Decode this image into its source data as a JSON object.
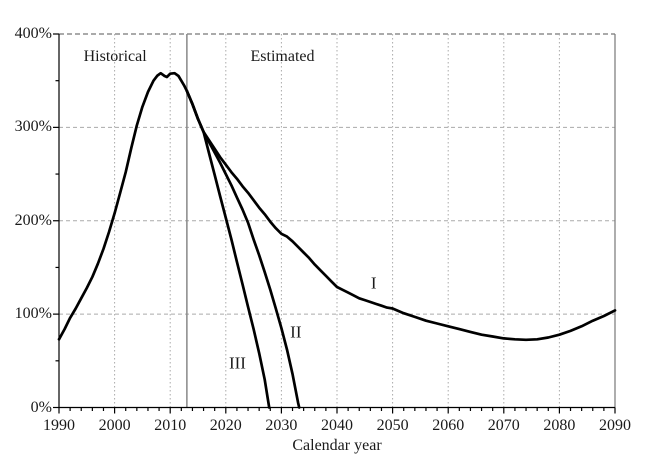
{
  "chart_data": {
    "type": "line",
    "title": "",
    "xlabel": "Calendar year",
    "ylabel": "",
    "xlim": [
      1990,
      2090
    ],
    "ylim": [
      0,
      400
    ],
    "x_tick_step": 10,
    "x_minor_step": 2,
    "y_tick_step": 100,
    "y_minor_step": 50,
    "grid": true,
    "legend_position": "none",
    "x_ticks": [
      "1990",
      "2000",
      "2010",
      "2020",
      "2030",
      "2040",
      "2050",
      "2060",
      "2070",
      "2080",
      "2090"
    ],
    "y_ticks": [
      "0%",
      "100%",
      "200%",
      "300%",
      "400%"
    ],
    "divider_year": 2013,
    "annotations": {
      "historical": {
        "text": "Historical",
        "x": 2000.1,
        "y": 375
      },
      "estimated": {
        "text": "Estimated",
        "x": 2030.2,
        "y": 375
      }
    },
    "series": [
      {
        "name": "historical",
        "label": "",
        "points": [
          [
            1990,
            73
          ],
          [
            1991,
            84
          ],
          [
            1992,
            96
          ],
          [
            1993,
            106
          ],
          [
            1994,
            117
          ],
          [
            1995,
            128
          ],
          [
            1996,
            140
          ],
          [
            1997,
            154
          ],
          [
            1998,
            170
          ],
          [
            1999,
            188
          ],
          [
            2000,
            208
          ],
          [
            2001,
            230
          ],
          [
            2002,
            252
          ],
          [
            2003,
            278
          ],
          [
            2004,
            302
          ],
          [
            2005,
            322
          ],
          [
            2006,
            338
          ],
          [
            2007,
            350
          ],
          [
            2007.7,
            355.5
          ],
          [
            2008.3,
            358
          ],
          [
            2009,
            355
          ],
          [
            2009.4,
            354
          ],
          [
            2010,
            357.5
          ],
          [
            2010.8,
            358
          ],
          [
            2011.5,
            355
          ],
          [
            2012,
            350
          ],
          [
            2012.5,
            345
          ],
          [
            2013,
            339
          ]
        ]
      },
      {
        "name": "alternative-I",
        "label": "I",
        "label_x": 2046.6,
        "label_y": 133,
        "points": [
          [
            2013,
            339
          ],
          [
            2014,
            325
          ],
          [
            2015,
            309
          ],
          [
            2016,
            295
          ],
          [
            2017,
            286
          ],
          [
            2018,
            277
          ],
          [
            2019,
            268
          ],
          [
            2020,
            260
          ],
          [
            2021,
            252
          ],
          [
            2022,
            245
          ],
          [
            2023,
            237
          ],
          [
            2024,
            230
          ],
          [
            2025,
            222
          ],
          [
            2026,
            214
          ],
          [
            2027,
            207
          ],
          [
            2028,
            199
          ],
          [
            2029,
            192
          ],
          [
            2030,
            186
          ],
          [
            2031,
            183
          ],
          [
            2032,
            178
          ],
          [
            2033,
            172
          ],
          [
            2034,
            166
          ],
          [
            2035,
            160
          ],
          [
            2036,
            153
          ],
          [
            2037,
            147
          ],
          [
            2038,
            141
          ],
          [
            2039,
            135
          ],
          [
            2040,
            129
          ],
          [
            2041,
            126
          ],
          [
            2042,
            123
          ],
          [
            2043,
            120
          ],
          [
            2044,
            117
          ],
          [
            2045,
            115
          ],
          [
            2046,
            113
          ],
          [
            2047,
            111
          ],
          [
            2048,
            109
          ],
          [
            2049,
            107
          ],
          [
            2050,
            106
          ],
          [
            2052,
            101
          ],
          [
            2054,
            97
          ],
          [
            2056,
            93
          ],
          [
            2058,
            90
          ],
          [
            2060,
            87
          ],
          [
            2062,
            84
          ],
          [
            2064,
            81
          ],
          [
            2066,
            78
          ],
          [
            2068,
            76
          ],
          [
            2070,
            74
          ],
          [
            2072,
            73
          ],
          [
            2074,
            72.5
          ],
          [
            2076,
            73
          ],
          [
            2078,
            75
          ],
          [
            2080,
            78
          ],
          [
            2082,
            82
          ],
          [
            2084,
            87
          ],
          [
            2086,
            93
          ],
          [
            2088,
            98
          ],
          [
            2090,
            104
          ]
        ]
      },
      {
        "name": "alternative-II",
        "label": "II",
        "label_x": 2032.6,
        "label_y": 81,
        "points": [
          [
            2013,
            339
          ],
          [
            2014,
            325
          ],
          [
            2015,
            309
          ],
          [
            2016,
            295
          ],
          [
            2017,
            284
          ],
          [
            2018,
            273
          ],
          [
            2019,
            262
          ],
          [
            2020,
            250
          ],
          [
            2021,
            238
          ],
          [
            2022,
            225
          ],
          [
            2023,
            212
          ],
          [
            2024,
            198
          ],
          [
            2025,
            180
          ],
          [
            2026,
            163
          ],
          [
            2027,
            145
          ],
          [
            2028,
            126
          ],
          [
            2029,
            106
          ],
          [
            2030,
            85
          ],
          [
            2031,
            62
          ],
          [
            2032,
            36
          ],
          [
            2033,
            5
          ],
          [
            2033.2,
            0
          ]
        ]
      },
      {
        "name": "alternative-III",
        "label": "III",
        "label_x": 2022.1,
        "label_y": 48,
        "points": [
          [
            2013,
            339
          ],
          [
            2014,
            325
          ],
          [
            2015,
            309
          ],
          [
            2016,
            295
          ],
          [
            2017,
            272
          ],
          [
            2018,
            249
          ],
          [
            2019,
            226
          ],
          [
            2020,
            203
          ],
          [
            2021,
            180
          ],
          [
            2022,
            156
          ],
          [
            2023,
            132
          ],
          [
            2024,
            108
          ],
          [
            2025,
            84
          ],
          [
            2026,
            58
          ],
          [
            2027,
            30
          ],
          [
            2027.8,
            0
          ]
        ]
      }
    ]
  },
  "colors": {
    "curve": "#000000",
    "grid": "#aaaaaa",
    "grid_top": "#555555",
    "axis": "#000000",
    "right_border": "#777777",
    "divider": "#888888",
    "text": "#1a1a1a",
    "background": "#ffffff"
  }
}
